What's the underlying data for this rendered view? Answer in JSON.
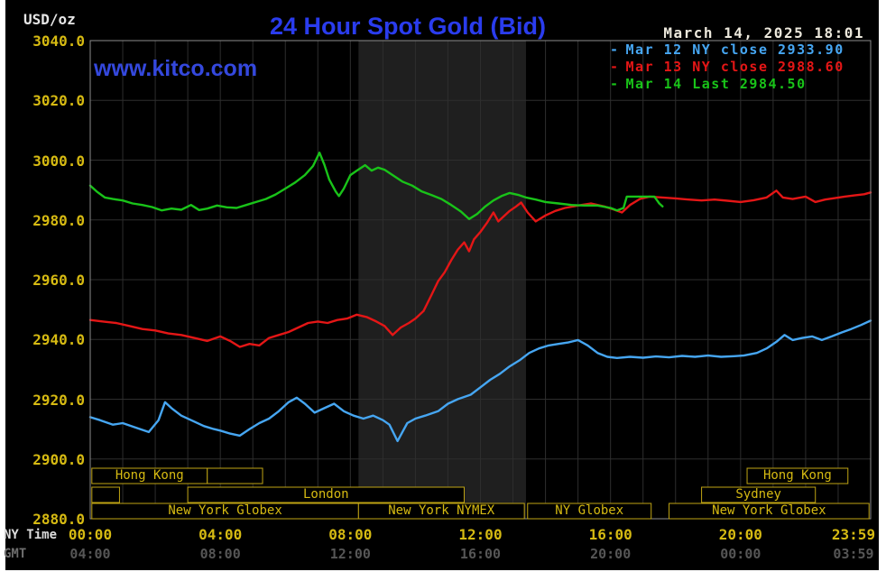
{
  "header": {
    "unit_label": "USD/oz",
    "title": "24 Hour Spot Gold (Bid)",
    "timestamp": "March 14, 2025 18:01",
    "watermark": "www.kitco.com"
  },
  "legend": {
    "position": "top-right",
    "items": [
      {
        "dash": "-",
        "label": "Mar 12 NY close 2933.90",
        "color": "#46a6f2"
      },
      {
        "dash": "-",
        "label": "Mar 13 NY close 2988.60",
        "color": "#e41616"
      },
      {
        "dash": "-",
        "label": "Mar 14 Last 2984.50",
        "color": "#19c319"
      }
    ]
  },
  "colors": {
    "page": "#ffffff",
    "background": "#000000",
    "grid": "#2e2e2e",
    "frame": "#8c8c8c",
    "band": "#1f1f1f",
    "axis_yellow": "#d6ba12",
    "gmt_gray": "#565656",
    "title_blue": "#2a3cee",
    "watermark_blue": "#3448dd",
    "session_border": "#bfa414",
    "white_text": "#e6e6e6"
  },
  "chart_data": {
    "type": "line",
    "title": "24 Hour Spot Gold (Bid)",
    "ylabel": "USD/oz",
    "xlabel": "NY Time",
    "ylim": [
      2880,
      3040
    ],
    "y_tick_step": 20,
    "grid": true,
    "legend_position": "top-right",
    "y_ticks": [
      "3040.0",
      "3020.0",
      "3000.0",
      "2980.0",
      "2960.0",
      "2940.0",
      "2920.0",
      "2900.0",
      "2880.0"
    ],
    "x_axis": {
      "caption": "NY Time",
      "ticks": [
        "00:00",
        "04:00",
        "08:00",
        "12:00",
        "16:00",
        "20:00",
        "23:59"
      ],
      "hours": [
        0,
        4,
        8,
        12,
        16,
        20,
        23.98
      ]
    },
    "x_axis_secondary": {
      "caption": "GMT",
      "ticks": [
        "04:00",
        "08:00",
        "12:00",
        "16:00",
        "20:00",
        "00:00",
        "03:59"
      ]
    },
    "shaded_region_hours": [
      8.25,
      13.4
    ],
    "series": [
      {
        "name": "Mar 12",
        "legend": "Mar 12 NY close 2933.90",
        "close": 2933.9,
        "color": "#46a6f2",
        "points": [
          [
            0,
            2914
          ],
          [
            0.3,
            2913
          ],
          [
            0.7,
            2911.5
          ],
          [
            1,
            2912
          ],
          [
            1.4,
            2910.5
          ],
          [
            1.8,
            2909
          ],
          [
            2.1,
            2913
          ],
          [
            2.3,
            2919
          ],
          [
            2.5,
            2917
          ],
          [
            2.8,
            2914.5
          ],
          [
            3.2,
            2912.5
          ],
          [
            3.5,
            2911
          ],
          [
            3.8,
            2910
          ],
          [
            4,
            2909.5
          ],
          [
            4.3,
            2908.5
          ],
          [
            4.6,
            2907.8
          ],
          [
            4.9,
            2910
          ],
          [
            5.2,
            2912
          ],
          [
            5.5,
            2913.5
          ],
          [
            5.8,
            2916
          ],
          [
            6.1,
            2919
          ],
          [
            6.35,
            2920.5
          ],
          [
            6.6,
            2918.5
          ],
          [
            6.9,
            2915.5
          ],
          [
            7.2,
            2917
          ],
          [
            7.5,
            2918.5
          ],
          [
            7.8,
            2916
          ],
          [
            8.1,
            2914.5
          ],
          [
            8.4,
            2913.5
          ],
          [
            8.7,
            2914.5
          ],
          [
            9,
            2913
          ],
          [
            9.2,
            2911.5
          ],
          [
            9.45,
            2906
          ],
          [
            9.6,
            2909
          ],
          [
            9.75,
            2912
          ],
          [
            10,
            2913.5
          ],
          [
            10.3,
            2914.5
          ],
          [
            10.7,
            2916
          ],
          [
            11,
            2918.5
          ],
          [
            11.3,
            2920
          ],
          [
            11.7,
            2921.5
          ],
          [
            12,
            2924
          ],
          [
            12.3,
            2926.5
          ],
          [
            12.6,
            2928.5
          ],
          [
            12.9,
            2931
          ],
          [
            13.2,
            2933
          ],
          [
            13.5,
            2935.5
          ],
          [
            13.8,
            2937
          ],
          [
            14.1,
            2938
          ],
          [
            14.4,
            2938.5
          ],
          [
            14.7,
            2939
          ],
          [
            15,
            2939.8
          ],
          [
            15.3,
            2938
          ],
          [
            15.6,
            2935.5
          ],
          [
            15.9,
            2934.2
          ],
          [
            16.2,
            2933.8
          ],
          [
            16.6,
            2934.2
          ],
          [
            17,
            2933.9
          ],
          [
            17.4,
            2934.3
          ],
          [
            17.8,
            2934
          ],
          [
            18.2,
            2934.5
          ],
          [
            18.6,
            2934.2
          ],
          [
            19,
            2934.6
          ],
          [
            19.4,
            2934.2
          ],
          [
            19.8,
            2934.4
          ],
          [
            20.1,
            2934.6
          ],
          [
            20.5,
            2935.5
          ],
          [
            20.8,
            2937
          ],
          [
            21.1,
            2939.2
          ],
          [
            21.35,
            2941.5
          ],
          [
            21.6,
            2939.8
          ],
          [
            21.9,
            2940.5
          ],
          [
            22.2,
            2941
          ],
          [
            22.5,
            2939.8
          ],
          [
            22.8,
            2941
          ],
          [
            23.1,
            2942.3
          ],
          [
            23.4,
            2943.5
          ],
          [
            23.7,
            2944.8
          ],
          [
            24,
            2946.3
          ]
        ]
      },
      {
        "name": "Mar 13",
        "legend": "Mar 13 NY close 2988.60",
        "close": 2988.6,
        "color": "#e41616",
        "points": [
          [
            0,
            2946.5
          ],
          [
            0.4,
            2946
          ],
          [
            0.8,
            2945.5
          ],
          [
            1.2,
            2944.5
          ],
          [
            1.6,
            2943.5
          ],
          [
            2,
            2943
          ],
          [
            2.4,
            2942
          ],
          [
            2.8,
            2941.5
          ],
          [
            3.2,
            2940.5
          ],
          [
            3.6,
            2939.5
          ],
          [
            4,
            2941
          ],
          [
            4.3,
            2939.5
          ],
          [
            4.6,
            2937.5
          ],
          [
            4.9,
            2938.5
          ],
          [
            5.2,
            2938
          ],
          [
            5.5,
            2940.5
          ],
          [
            5.8,
            2941.5
          ],
          [
            6.1,
            2942.5
          ],
          [
            6.4,
            2944
          ],
          [
            6.7,
            2945.5
          ],
          [
            7,
            2946
          ],
          [
            7.3,
            2945.5
          ],
          [
            7.6,
            2946.5
          ],
          [
            7.9,
            2947
          ],
          [
            8.2,
            2948.3
          ],
          [
            8.5,
            2947.5
          ],
          [
            8.8,
            2946
          ],
          [
            9.05,
            2944.5
          ],
          [
            9.3,
            2941.5
          ],
          [
            9.55,
            2944
          ],
          [
            9.8,
            2945.5
          ],
          [
            10,
            2947
          ],
          [
            10.25,
            2949.5
          ],
          [
            10.5,
            2955
          ],
          [
            10.7,
            2959.5
          ],
          [
            10.9,
            2962.5
          ],
          [
            11.1,
            2966.5
          ],
          [
            11.3,
            2970
          ],
          [
            11.5,
            2972.5
          ],
          [
            11.65,
            2969.5
          ],
          [
            11.8,
            2973.5
          ],
          [
            12,
            2976
          ],
          [
            12.2,
            2979
          ],
          [
            12.4,
            2982.5
          ],
          [
            12.55,
            2979.5
          ],
          [
            12.7,
            2981
          ],
          [
            12.9,
            2983
          ],
          [
            13.1,
            2984.5
          ],
          [
            13.25,
            2985.8
          ],
          [
            13.45,
            2982.5
          ],
          [
            13.7,
            2979.5
          ],
          [
            14,
            2981.5
          ],
          [
            14.3,
            2983
          ],
          [
            14.6,
            2984
          ],
          [
            15,
            2984.8
          ],
          [
            15.4,
            2985.5
          ],
          [
            15.8,
            2984.5
          ],
          [
            16.1,
            2983.5
          ],
          [
            16.35,
            2982.5
          ],
          [
            16.6,
            2985
          ],
          [
            16.9,
            2987
          ],
          [
            17.2,
            2987.8
          ],
          [
            17.6,
            2987.5
          ],
          [
            18,
            2987.2
          ],
          [
            18.4,
            2986.8
          ],
          [
            18.8,
            2986.5
          ],
          [
            19.2,
            2986.8
          ],
          [
            19.6,
            2986.4
          ],
          [
            20,
            2986
          ],
          [
            20.4,
            2986.6
          ],
          [
            20.8,
            2987.5
          ],
          [
            21.1,
            2989.8
          ],
          [
            21.3,
            2987.5
          ],
          [
            21.6,
            2987
          ],
          [
            22,
            2987.8
          ],
          [
            22.3,
            2986
          ],
          [
            22.6,
            2986.8
          ],
          [
            22.9,
            2987.3
          ],
          [
            23.2,
            2987.8
          ],
          [
            23.5,
            2988.2
          ],
          [
            23.8,
            2988.6
          ],
          [
            24,
            2989.2
          ]
        ]
      },
      {
        "name": "Mar 14",
        "legend": "Mar 14 Last 2984.50",
        "last": 2984.5,
        "color": "#19c319",
        "points": [
          [
            0,
            2991.5
          ],
          [
            0.2,
            2989.5
          ],
          [
            0.45,
            2987.5
          ],
          [
            0.7,
            2987
          ],
          [
            1,
            2986.5
          ],
          [
            1.3,
            2985.5
          ],
          [
            1.6,
            2985
          ],
          [
            1.9,
            2984.3
          ],
          [
            2.2,
            2983.2
          ],
          [
            2.5,
            2983.8
          ],
          [
            2.8,
            2983.4
          ],
          [
            3.1,
            2985
          ],
          [
            3.35,
            2983.3
          ],
          [
            3.6,
            2983.8
          ],
          [
            3.9,
            2984.8
          ],
          [
            4.2,
            2984.2
          ],
          [
            4.5,
            2984
          ],
          [
            4.8,
            2985
          ],
          [
            5.1,
            2986
          ],
          [
            5.4,
            2987
          ],
          [
            5.7,
            2988.5
          ],
          [
            6,
            2990.5
          ],
          [
            6.3,
            2992.5
          ],
          [
            6.6,
            2995
          ],
          [
            6.85,
            2998
          ],
          [
            7.05,
            3002.5
          ],
          [
            7.2,
            2998.5
          ],
          [
            7.35,
            2993.5
          ],
          [
            7.55,
            2989.5
          ],
          [
            7.65,
            2988
          ],
          [
            7.8,
            2990.5
          ],
          [
            8,
            2995
          ],
          [
            8.2,
            2996.5
          ],
          [
            8.45,
            2998.3
          ],
          [
            8.65,
            2996.5
          ],
          [
            8.85,
            2997.5
          ],
          [
            9.05,
            2996.8
          ],
          [
            9.3,
            2995
          ],
          [
            9.6,
            2992.8
          ],
          [
            9.9,
            2991.5
          ],
          [
            10.2,
            2989.5
          ],
          [
            10.5,
            2988.3
          ],
          [
            10.8,
            2987
          ],
          [
            11.1,
            2985
          ],
          [
            11.4,
            2982.8
          ],
          [
            11.65,
            2980.3
          ],
          [
            11.9,
            2982
          ],
          [
            12.15,
            2984.5
          ],
          [
            12.4,
            2986.5
          ],
          [
            12.65,
            2988
          ],
          [
            12.9,
            2989
          ],
          [
            13.15,
            2988.4
          ],
          [
            13.4,
            2987.5
          ],
          [
            13.7,
            2986.8
          ],
          [
            14,
            2986
          ],
          [
            14.4,
            2985.5
          ],
          [
            14.8,
            2985
          ],
          [
            15.2,
            2984.8
          ],
          [
            15.6,
            2984.8
          ],
          [
            16,
            2984
          ],
          [
            16.2,
            2983.2
          ],
          [
            16.4,
            2984
          ],
          [
            16.5,
            2987.8
          ],
          [
            16.8,
            2987.8
          ],
          [
            17.1,
            2987.8
          ],
          [
            17.35,
            2987.8
          ],
          [
            17.5,
            2985.5
          ],
          [
            17.6,
            2984.5
          ]
        ]
      }
    ],
    "sessions": [
      {
        "row": 0,
        "label": "Hong Kong",
        "start": 0.05,
        "end": 3.6
      },
      {
        "row": 0,
        "label": "",
        "start": 3.6,
        "end": 5.3
      },
      {
        "row": 0,
        "label": "Hong Kong",
        "start": 20.2,
        "end": 23.3
      },
      {
        "row": 1,
        "label": "",
        "start": 0.05,
        "end": 0.9
      },
      {
        "row": 1,
        "label": "London",
        "start": 3.0,
        "end": 11.5
      },
      {
        "row": 1,
        "label": "Sydney",
        "start": 18.8,
        "end": 22.3
      },
      {
        "row": 2,
        "label": "New York Globex",
        "start": 0.05,
        "end": 8.25
      },
      {
        "row": 2,
        "label": "New York NYMEX",
        "start": 8.25,
        "end": 13.35
      },
      {
        "row": 2,
        "label": "NY Globex",
        "start": 13.45,
        "end": 17.25
      },
      {
        "row": 2,
        "label": "New York Globex",
        "start": 17.8,
        "end": 23.95
      }
    ]
  }
}
